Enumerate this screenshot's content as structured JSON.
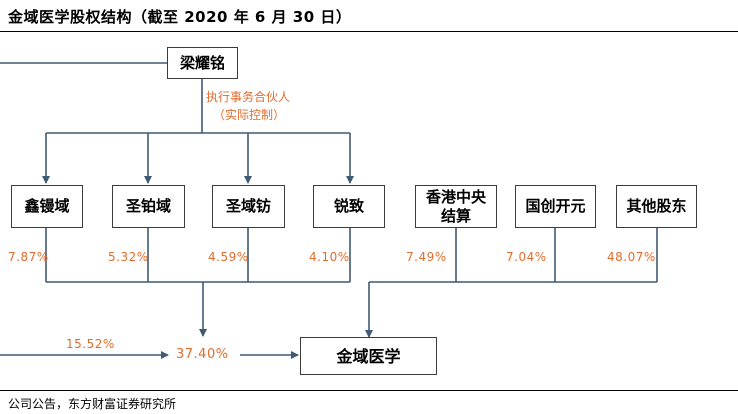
{
  "title": "金域医学股权结构（截至 2020 年 6 月 30 日）",
  "source": "公司公告，东方财富证券研究所",
  "top_holder": "梁耀铭",
  "control_label_line1": "执行事务合伙人",
  "control_label_line2": "（实际控制）",
  "shareholders": [
    {
      "name": "鑫镘域",
      "pct": "7.87%"
    },
    {
      "name": "圣铂域",
      "pct": "5.32%"
    },
    {
      "name": "圣域钫",
      "pct": "4.59%"
    },
    {
      "name": "锐致",
      "pct": "4.10%"
    },
    {
      "name_line1": "香港中央",
      "name_line2": "结算",
      "pct": "7.49%"
    },
    {
      "name": "国创开元",
      "pct": "7.04%"
    },
    {
      "name": "其他股东",
      "pct": "48.07%"
    }
  ],
  "direct_pct": "15.52%",
  "combined_pct": "37.40%",
  "company": "金域医学",
  "colors": {
    "accent": "#e36c2c",
    "line": "#3f5a73",
    "border": "#3b3b3b"
  }
}
